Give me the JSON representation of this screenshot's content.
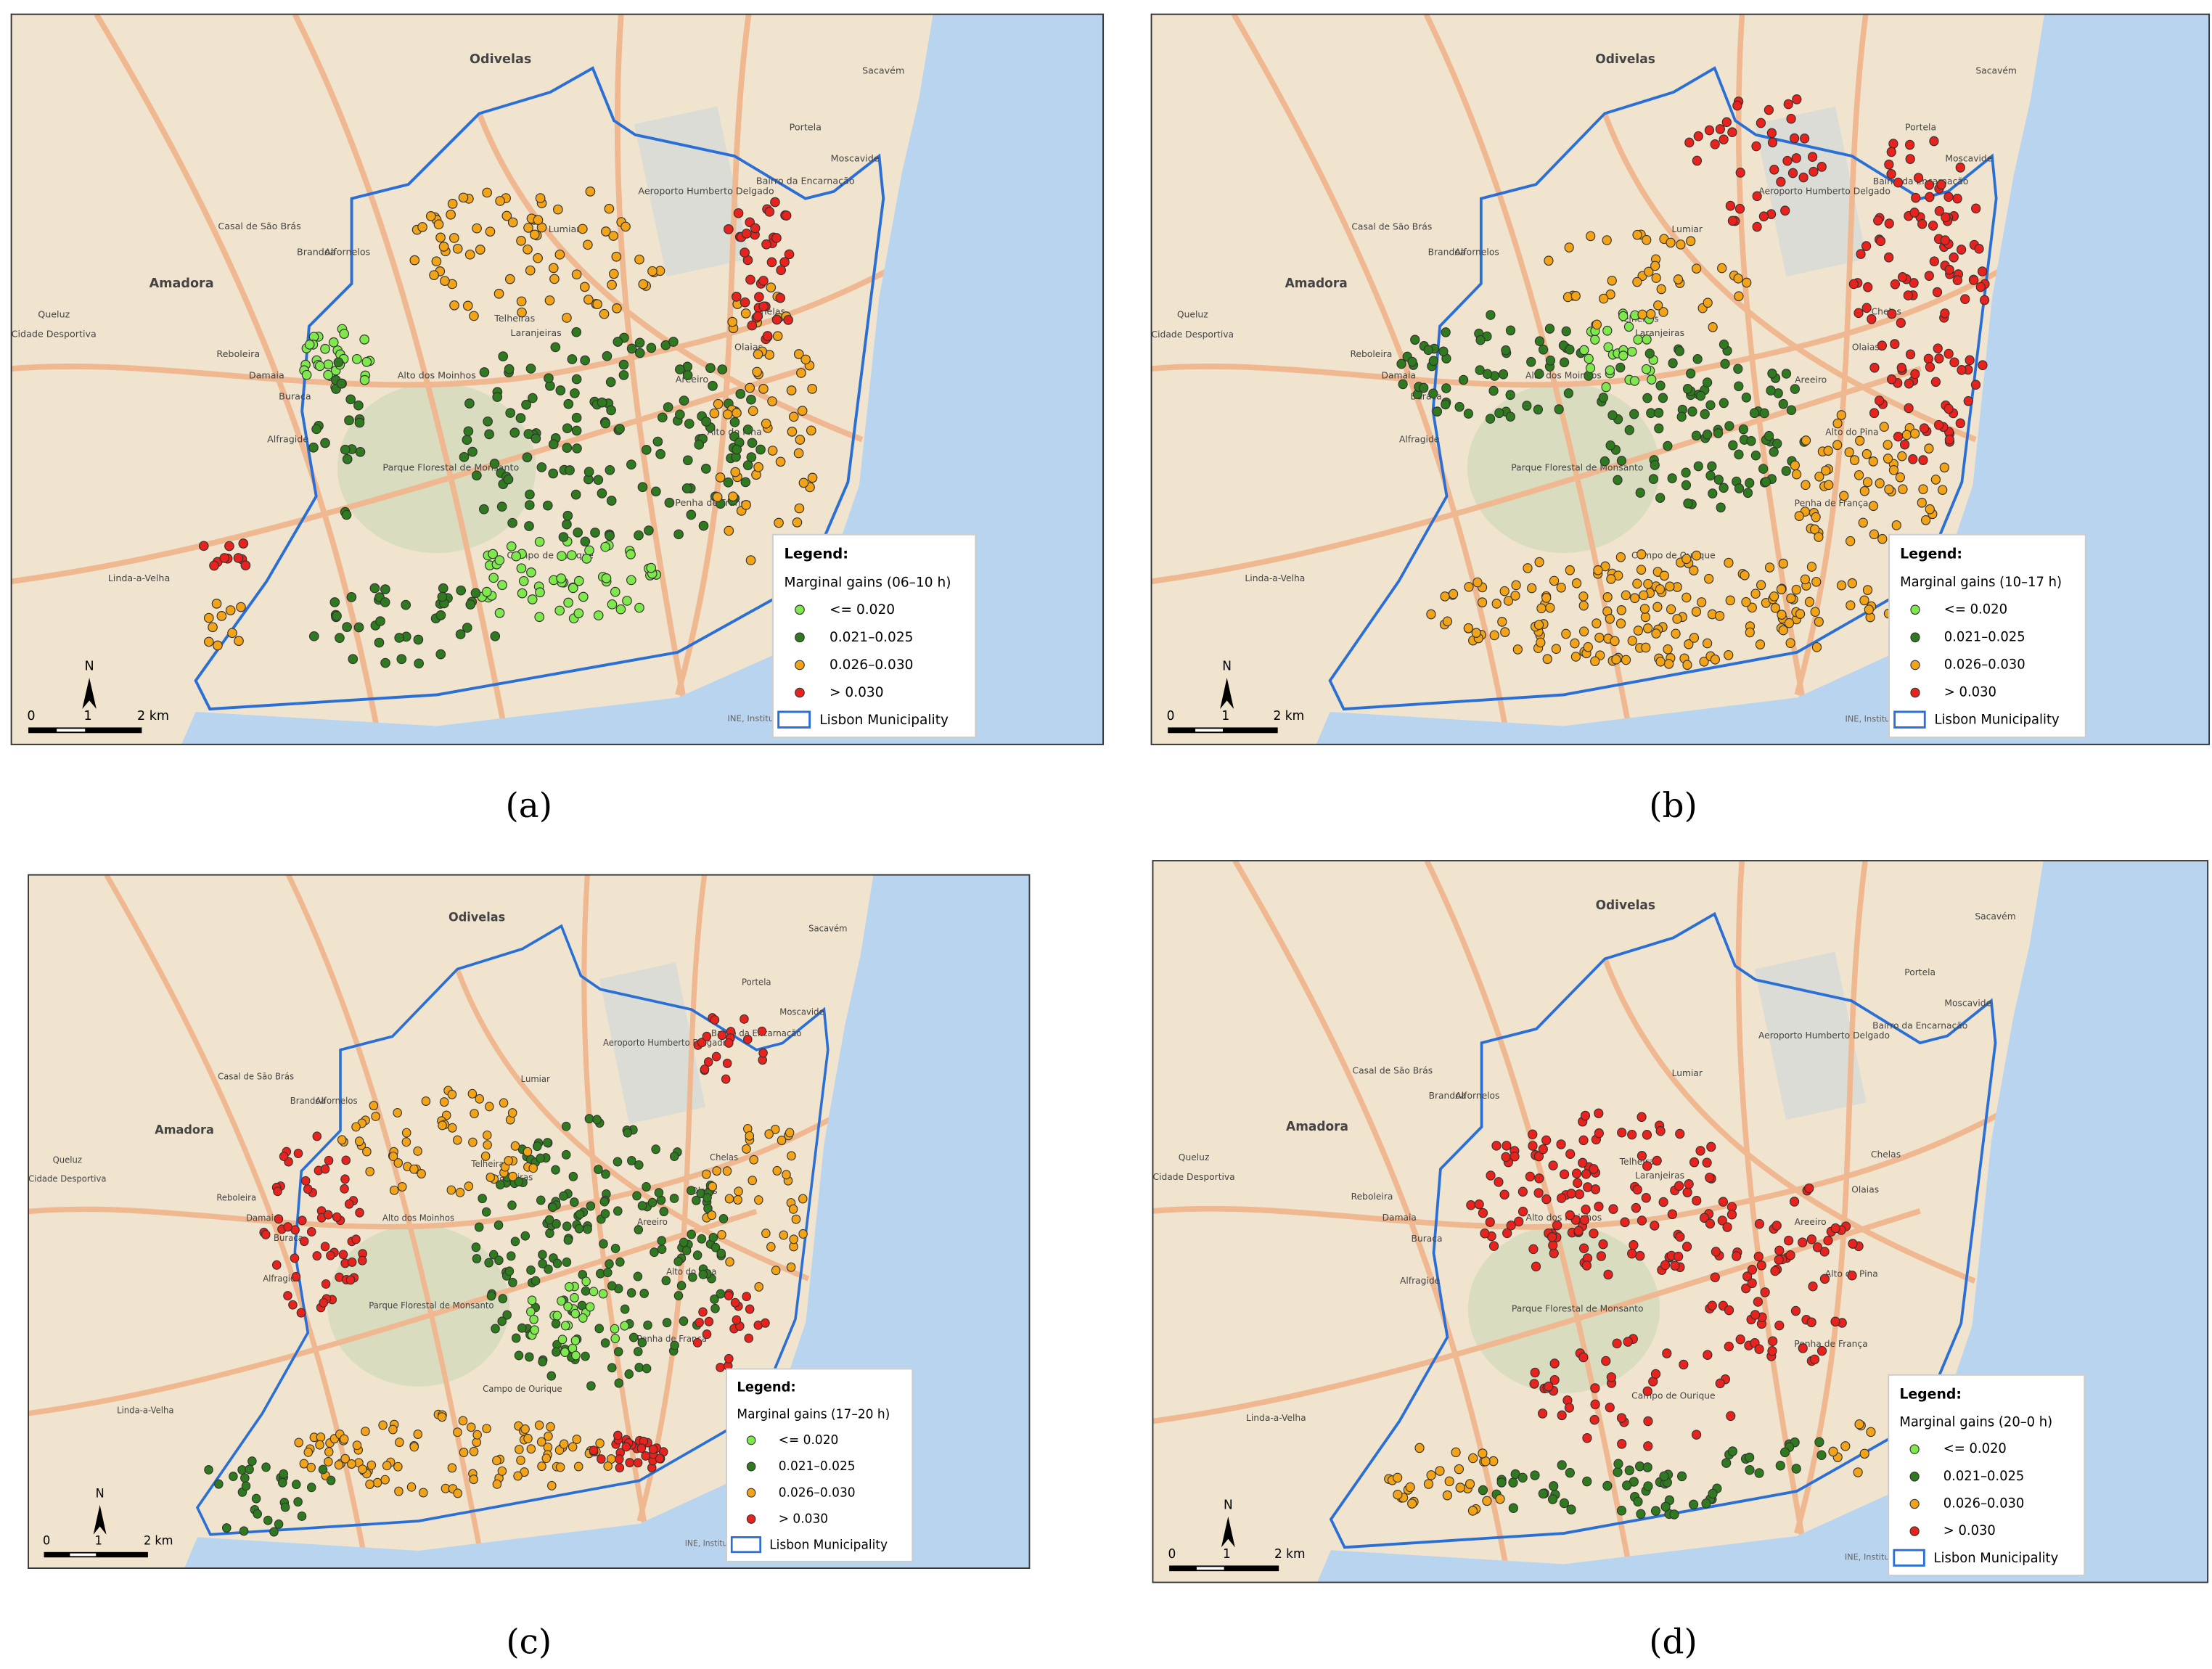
{
  "panels": [
    {
      "label": "(a)",
      "subtitle": "Marginal gains (06–10 h)"
    },
    {
      "label": "(b)",
      "subtitle": "Marginal gains (10–17 h)"
    },
    {
      "label": "(c)",
      "subtitle": "Marginal gains (17–20 h)"
    },
    {
      "label": "(d)",
      "subtitle": "Marginal gains (20–0 h)"
    }
  ],
  "legend": {
    "title": "Legend:",
    "items": [
      {
        "label": "<= 0.020",
        "color": "#7ee84c"
      },
      {
        "label": "0.021–0.025",
        "color": "#2f7a1f"
      },
      {
        "label": "0.026–0.030",
        "color": "#f2a317"
      },
      {
        "label": "> 0.030",
        "color": "#e8221d"
      }
    ],
    "boundary": "Lisbon Municipality"
  },
  "scale_bar": {
    "labels": [
      "0",
      "1",
      "2 km"
    ],
    "north": "N"
  },
  "map_labels": [
    "Odivelas",
    "Amadora",
    "Sacavém",
    "Moscavide",
    "Portela",
    "Bairro da Encarnação",
    "Lumiar",
    "Telheiras",
    "Laranjeiras",
    "Alto dos Moinhos",
    "Campo de Ourique",
    "Alto do Pina",
    "Olaias",
    "Chelas",
    "Areeiro",
    "Penha de França",
    "Alfornelos",
    "Brandoa",
    "Queluz",
    "Reboleira",
    "Damaia",
    "Alfragide",
    "Linda-a-Velha",
    "Casal de São Brás",
    "Parque Florestal de Monsanto",
    "Aeroporto Humberto Delgado",
    "Buraca",
    "Cidade Desportiva"
  ],
  "attribution": "INE, Instituto Geográfico Nacional, NGA, USGS"
}
